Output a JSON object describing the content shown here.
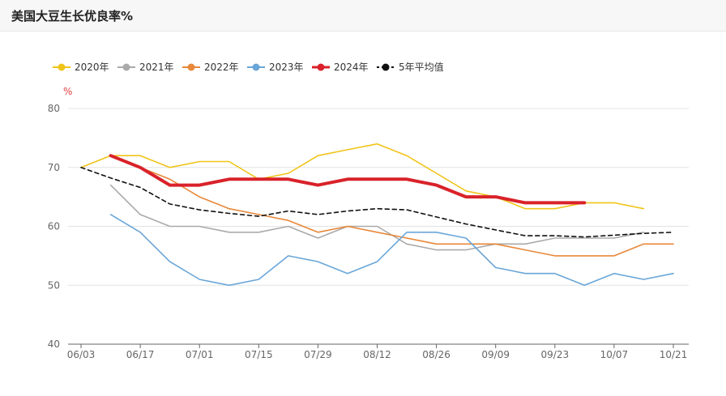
{
  "header": {
    "title": "美国大豆生长优良率%"
  },
  "chart_data": {
    "type": "line",
    "ylabel": "%",
    "ylim": [
      40,
      80
    ],
    "yticks": [
      40,
      50,
      60,
      70,
      80
    ],
    "x_tick_labels": [
      "06/03",
      "06/17",
      "07/01",
      "07/15",
      "07/29",
      "08/12",
      "08/26",
      "09/09",
      "09/23",
      "10/07",
      "10/21"
    ],
    "grid": "horizontal",
    "legend_position": "top-left",
    "series": [
      {
        "name": "2020年",
        "color": "#f0c419",
        "width": 1.6,
        "dashed": false,
        "points": [
          [
            0,
            70
          ],
          [
            1,
            72
          ],
          [
            2,
            72
          ],
          [
            3,
            70
          ],
          [
            4,
            71
          ],
          [
            5,
            71
          ],
          [
            6,
            68
          ],
          [
            7,
            69
          ],
          [
            8,
            72
          ],
          [
            9,
            73
          ],
          [
            10,
            74
          ],
          [
            11,
            72
          ],
          [
            12,
            69
          ],
          [
            13,
            66
          ],
          [
            14,
            65
          ],
          [
            15,
            63
          ],
          [
            16,
            63
          ],
          [
            17,
            64
          ],
          [
            18,
            64
          ],
          [
            19,
            63
          ]
        ]
      },
      {
        "name": "2021年",
        "color": "#aaaaaa",
        "width": 1.6,
        "dashed": false,
        "points": [
          [
            1,
            67
          ],
          [
            2,
            62
          ],
          [
            3,
            60
          ],
          [
            4,
            60
          ],
          [
            5,
            59
          ],
          [
            6,
            59
          ],
          [
            7,
            60
          ],
          [
            8,
            58
          ],
          [
            9,
            60
          ],
          [
            10,
            60
          ],
          [
            11,
            57
          ],
          [
            12,
            56
          ],
          [
            13,
            56
          ],
          [
            14,
            57
          ],
          [
            15,
            57
          ],
          [
            16,
            58
          ],
          [
            17,
            58
          ],
          [
            18,
            58
          ],
          [
            19,
            59
          ]
        ]
      },
      {
        "name": "2022年",
        "color": "#e8883a",
        "width": 1.6,
        "dashed": false,
        "points": [
          [
            1,
            72
          ],
          [
            2,
            70
          ],
          [
            3,
            68
          ],
          [
            4,
            65
          ],
          [
            5,
            63
          ],
          [
            6,
            62
          ],
          [
            7,
            61
          ],
          [
            8,
            59
          ],
          [
            9,
            60
          ],
          [
            10,
            59
          ],
          [
            11,
            58
          ],
          [
            12,
            57
          ],
          [
            13,
            57
          ],
          [
            14,
            57
          ],
          [
            15,
            56
          ],
          [
            16,
            55
          ],
          [
            17,
            55
          ],
          [
            18,
            55
          ],
          [
            19,
            57
          ],
          [
            20,
            57
          ]
        ]
      },
      {
        "name": "2023年",
        "color": "#6aa6d8",
        "width": 1.6,
        "dashed": false,
        "points": [
          [
            1,
            62
          ],
          [
            2,
            59
          ],
          [
            3,
            54
          ],
          [
            4,
            51
          ],
          [
            5,
            50
          ],
          [
            6,
            51
          ],
          [
            7,
            55
          ],
          [
            8,
            54
          ],
          [
            9,
            52
          ],
          [
            10,
            54
          ],
          [
            11,
            59
          ],
          [
            12,
            59
          ],
          [
            13,
            58
          ],
          [
            14,
            53
          ],
          [
            15,
            52
          ],
          [
            16,
            52
          ],
          [
            17,
            50
          ],
          [
            18,
            52
          ],
          [
            19,
            51
          ],
          [
            20,
            52
          ]
        ]
      },
      {
        "name": "2024年",
        "color": "#d9222a",
        "width": 4,
        "dashed": false,
        "points": [
          [
            1,
            72
          ],
          [
            2,
            70
          ],
          [
            3,
            67
          ],
          [
            4,
            67
          ],
          [
            5,
            68
          ],
          [
            6,
            68
          ],
          [
            7,
            68
          ],
          [
            8,
            67
          ],
          [
            9,
            68
          ],
          [
            10,
            68
          ],
          [
            11,
            68
          ],
          [
            12,
            67
          ],
          [
            13,
            65
          ],
          [
            14,
            65
          ],
          [
            15,
            64
          ],
          [
            16,
            64
          ],
          [
            17,
            64
          ]
        ]
      },
      {
        "name": "5年平均值",
        "color": "#111111",
        "width": 1.6,
        "dashed": true,
        "points": [
          [
            0,
            70
          ],
          [
            1,
            68.2
          ],
          [
            2,
            66.6
          ],
          [
            3,
            63.8
          ],
          [
            4,
            62.8
          ],
          [
            5,
            62.2
          ],
          [
            6,
            61.7
          ],
          [
            7,
            62.6
          ],
          [
            8,
            62
          ],
          [
            9,
            62.6
          ],
          [
            10,
            63
          ],
          [
            11,
            62.8
          ],
          [
            12,
            61.6
          ],
          [
            13,
            60.4
          ],
          [
            14,
            59.4
          ],
          [
            15,
            58.4
          ],
          [
            16,
            58.4
          ],
          [
            17,
            58.2
          ],
          [
            18,
            58.5
          ],
          [
            19,
            58.8
          ],
          [
            20,
            59
          ]
        ]
      }
    ]
  }
}
